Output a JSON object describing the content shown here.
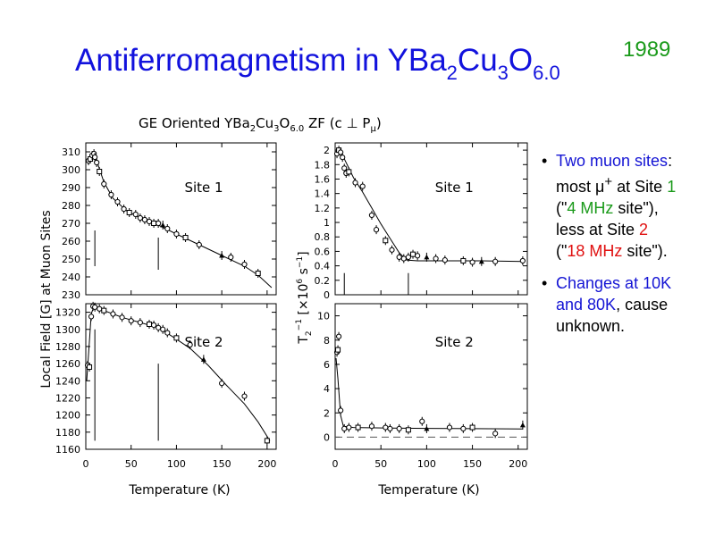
{
  "slide": {
    "title_parts": {
      "a": "Antiferromagnetism in YBa",
      "s1": "2",
      "b": "Cu",
      "s2": "3",
      "c": "O",
      "s3": "6.0"
    },
    "year": "1989",
    "bullets": {
      "b1": {
        "dot": "•",
        "l1": "Two muon sites",
        "l1_end": ":",
        "l2_pre": "most μ",
        "l2_sup": "+",
        "l2_mid": " at Site ",
        "l2_site": "1",
        "l3_open": "(\"",
        "l3_freq": "4 MHz",
        "l3_end": " site\"),",
        "l4_pre": "less at Site ",
        "l4_site": "2",
        "l5_open": "(\"",
        "l5_freq": "18 MHz",
        "l5_end": " site\")."
      },
      "b2": {
        "dot": "•",
        "l1": "Changes at 10K",
        "l2_blue": "and 80K",
        "l2_end": ", cause",
        "l3": "unknown."
      }
    }
  },
  "figure": {
    "header_parts": {
      "a": "GE Oriented YBa",
      "s1": "2",
      "b": "Cu",
      "s2": "3",
      "c": "O",
      "s3": "6.0",
      "d": " ZF (c ⊥ P",
      "s4": "μ",
      "e": ")"
    },
    "left_ylabel": "Local Field [G] at Muon Sites",
    "right_ylabel_parts": {
      "a": "T",
      "s1": "2",
      "sup1": "−1",
      "b": " [×10",
      "sup2": "6",
      "c": " s",
      "sup3": "−1",
      "d": "]"
    },
    "xlabel": "Temperature (K)"
  },
  "chart_data": [
    {
      "type": "scatter",
      "panel": "top-left",
      "annotation": "Site 1",
      "xlim": [
        0,
        210
      ],
      "ylim": [
        230,
        315
      ],
      "yticks": [
        230,
        240,
        250,
        260,
        270,
        280,
        290,
        300,
        310
      ],
      "xticks": [],
      "marker_lines_x": [
        10,
        80
      ],
      "marker_lines_y": [
        [
          246,
          266
        ],
        [
          244,
          262
        ]
      ],
      "points": [
        [
          3,
          305
        ],
        [
          5,
          306
        ],
        [
          7,
          308
        ],
        [
          9,
          309
        ],
        [
          10,
          307
        ],
        [
          12,
          304
        ],
        [
          15,
          299
        ],
        [
          20,
          292
        ],
        [
          28,
          286
        ],
        [
          35,
          282
        ],
        [
          42,
          278
        ],
        [
          48,
          276
        ],
        [
          55,
          275
        ],
        [
          60,
          273
        ],
        [
          65,
          272
        ],
        [
          70,
          271
        ],
        [
          75,
          270
        ],
        [
          80,
          270
        ],
        [
          85,
          269
        ],
        [
          90,
          267
        ],
        [
          100,
          264
        ],
        [
          110,
          262
        ],
        [
          125,
          258
        ],
        [
          150,
          252
        ],
        [
          160,
          251
        ],
        [
          175,
          247
        ],
        [
          190,
          242
        ]
      ],
      "fit": [
        [
          2,
          304
        ],
        [
          8,
          309
        ],
        [
          12,
          305
        ],
        [
          20,
          293
        ],
        [
          30,
          284
        ],
        [
          45,
          277
        ],
        [
          60,
          273
        ],
        [
          80,
          269
        ],
        [
          100,
          264
        ],
        [
          125,
          258
        ],
        [
          150,
          252
        ],
        [
          175,
          246
        ],
        [
          190,
          241
        ],
        [
          205,
          234
        ]
      ]
    },
    {
      "type": "scatter",
      "panel": "bottom-left",
      "annotation": "Site 2",
      "xlim": [
        0,
        210
      ],
      "ylim": [
        1160,
        1330
      ],
      "yticks": [
        1160,
        1180,
        1200,
        1220,
        1240,
        1260,
        1280,
        1300,
        1320
      ],
      "xticks": [
        0,
        50,
        100,
        150,
        200
      ],
      "marker_lines_x": [
        10,
        80
      ],
      "marker_lines_y": [
        [
          1170,
          1300
        ],
        [
          1170,
          1260
        ]
      ],
      "points": [
        [
          2,
          1258
        ],
        [
          4,
          1256
        ],
        [
          6,
          1315
        ],
        [
          8,
          1327
        ],
        [
          10,
          1326
        ],
        [
          15,
          1324
        ],
        [
          20,
          1322
        ],
        [
          30,
          1318
        ],
        [
          40,
          1314
        ],
        [
          50,
          1310
        ],
        [
          60,
          1308
        ],
        [
          70,
          1306
        ],
        [
          75,
          1305
        ],
        [
          80,
          1302
        ],
        [
          85,
          1300
        ],
        [
          90,
          1296
        ],
        [
          100,
          1290
        ],
        [
          115,
          1282
        ],
        [
          130,
          1265
        ],
        [
          150,
          1237
        ],
        [
          175,
          1222
        ],
        [
          200,
          1170
        ]
      ],
      "fit": [
        [
          1,
          1240
        ],
        [
          3,
          1270
        ],
        [
          6,
          1318
        ],
        [
          9,
          1327
        ],
        [
          20,
          1322
        ],
        [
          40,
          1314
        ],
        [
          60,
          1308
        ],
        [
          80,
          1302
        ],
        [
          95,
          1292
        ],
        [
          115,
          1278
        ],
        [
          135,
          1258
        ],
        [
          155,
          1235
        ],
        [
          175,
          1213
        ],
        [
          190,
          1192
        ],
        [
          203,
          1170
        ]
      ]
    },
    {
      "type": "scatter",
      "panel": "top-right",
      "annotation": "Site 1",
      "xlim": [
        0,
        210
      ],
      "ylim": [
        0,
        2.1
      ],
      "yticks": [
        0,
        0.2,
        0.4,
        0.6,
        0.8,
        1,
        1.2,
        1.4,
        1.6,
        1.8,
        2
      ],
      "yticklabels": [
        "0",
        "0.2",
        "0.4",
        "0.6",
        "0.8",
        "1",
        "1.2",
        "1.4",
        "1.6",
        "1.8",
        "2"
      ],
      "xticks": [],
      "marker_lines_x": [
        10,
        80
      ],
      "marker_lines_y": [
        [
          0,
          0.3
        ],
        [
          0,
          0.3
        ]
      ],
      "points": [
        [
          2,
          1.95
        ],
        [
          4,
          2.0
        ],
        [
          6,
          1.97
        ],
        [
          8,
          1.9
        ],
        [
          10,
          1.75
        ],
        [
          12,
          1.68
        ],
        [
          15,
          1.7
        ],
        [
          22,
          1.55
        ],
        [
          30,
          1.5
        ],
        [
          40,
          1.1
        ],
        [
          45,
          0.9
        ],
        [
          55,
          0.75
        ],
        [
          62,
          0.62
        ],
        [
          70,
          0.52
        ],
        [
          75,
          0.5
        ],
        [
          80,
          0.52
        ],
        [
          85,
          0.56
        ],
        [
          90,
          0.54
        ],
        [
          100,
          0.52
        ],
        [
          110,
          0.5
        ],
        [
          120,
          0.48
        ],
        [
          140,
          0.47
        ],
        [
          150,
          0.45
        ],
        [
          160,
          0.46
        ],
        [
          175,
          0.46
        ],
        [
          205,
          0.47
        ]
      ],
      "fit": [
        [
          2,
          2.0
        ],
        [
          10,
          1.88
        ],
        [
          20,
          1.62
        ],
        [
          30,
          1.42
        ],
        [
          40,
          1.2
        ],
        [
          50,
          0.98
        ],
        [
          60,
          0.78
        ],
        [
          70,
          0.58
        ],
        [
          78,
          0.48
        ],
        [
          90,
          0.47
        ],
        [
          120,
          0.47
        ],
        [
          160,
          0.47
        ],
        [
          205,
          0.46
        ]
      ]
    },
    {
      "type": "scatter",
      "panel": "bottom-right",
      "annotation": "Site 2",
      "xlim": [
        0,
        210
      ],
      "ylim": [
        -1,
        11
      ],
      "yticks": [
        0,
        2,
        4,
        6,
        8,
        10
      ],
      "xticks": [
        0,
        50,
        100,
        150,
        200
      ],
      "marker_lines_x": [],
      "dashed_baseline_y": 0,
      "points": [
        [
          2,
          7.0
        ],
        [
          3,
          7.2
        ],
        [
          4,
          8.3
        ],
        [
          6,
          2.2
        ],
        [
          10,
          0.7
        ],
        [
          15,
          0.8
        ],
        [
          25,
          0.8
        ],
        [
          40,
          0.9
        ],
        [
          55,
          0.8
        ],
        [
          60,
          0.7
        ],
        [
          70,
          0.7
        ],
        [
          80,
          0.6
        ],
        [
          95,
          1.3
        ],
        [
          100,
          0.7
        ],
        [
          125,
          0.8
        ],
        [
          140,
          0.7
        ],
        [
          150,
          0.8
        ],
        [
          175,
          0.3
        ],
        [
          205,
          1.0
        ]
      ],
      "fit": [
        [
          1,
          6.5
        ],
        [
          3,
          4.8
        ],
        [
          6,
          1.8
        ],
        [
          9,
          0.9
        ],
        [
          20,
          0.8
        ],
        [
          60,
          0.75
        ],
        [
          100,
          0.72
        ],
        [
          150,
          0.7
        ],
        [
          205,
          0.68
        ]
      ]
    }
  ]
}
